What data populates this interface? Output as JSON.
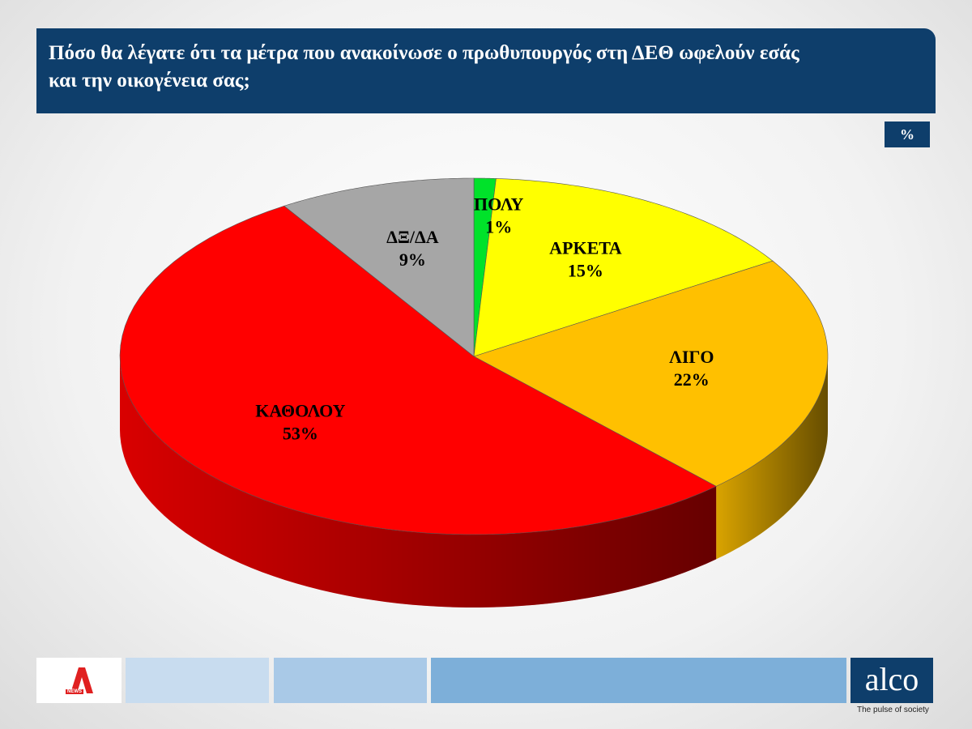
{
  "chart_data": {
    "type": "pie",
    "title": "Πόσο θα λέγατε ότι τα μέτρα που ανακοίνωσε ο πρωθυπουργός στη ΔΕΘ ωφελούν εσάς και την οικογένεια σας;",
    "unit": "%",
    "categories": [
      "ΠΟΛΥ",
      "ΑΡΚΕΤΑ",
      "ΛΙΓΟ",
      "ΚΑΘΟΛΟΥ",
      "ΔΞ/ΔΑ"
    ],
    "values": [
      1,
      15,
      22,
      53,
      9
    ],
    "value_labels": [
      "1%",
      "15%",
      "22%",
      "53%",
      "9%"
    ],
    "colors": [
      "#00e22a",
      "#ffff00",
      "#ffc000",
      "#ff0000",
      "#a6a6a6"
    ]
  },
  "footer": {
    "left_logo": "NEWS",
    "right_logo": "alco",
    "tagline": "The pulse of society"
  }
}
